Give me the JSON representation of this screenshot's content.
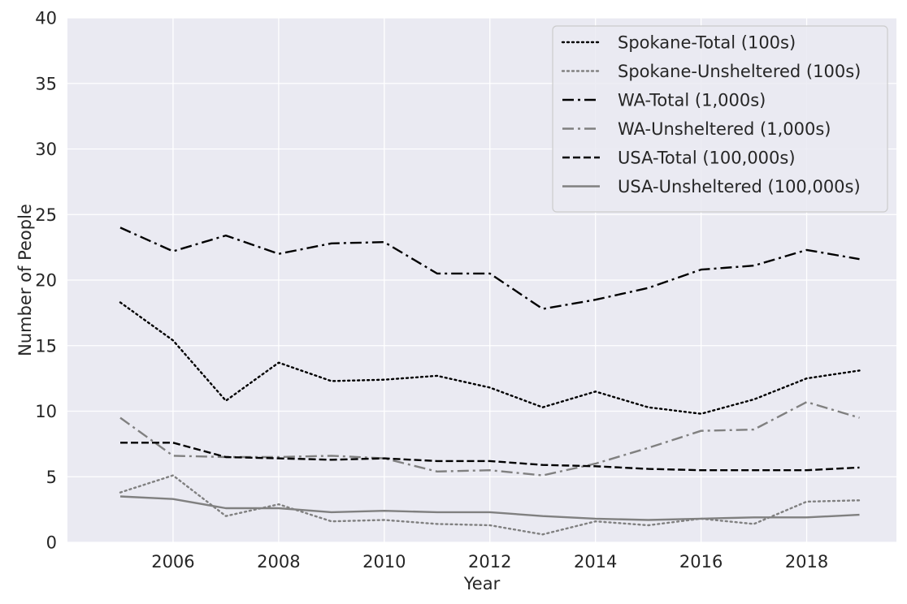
{
  "chart_data": {
    "type": "line",
    "title": "",
    "xlabel": "Year",
    "ylabel": "Number of People",
    "xlim": [
      2004,
      2019.7
    ],
    "ylim": [
      0,
      40
    ],
    "x_ticks": [
      "2006",
      "2008",
      "2010",
      "2012",
      "2014",
      "2016",
      "2018"
    ],
    "y_ticks": [
      "0",
      "5",
      "10",
      "15",
      "20",
      "25",
      "30",
      "35",
      "40"
    ],
    "grid": true,
    "background": "#eaeaf2",
    "legend_position": "top-right",
    "x": [
      2005,
      2006,
      2007,
      2008,
      2009,
      2010,
      2011,
      2012,
      2013,
      2014,
      2015,
      2016,
      2017,
      2018,
      2019
    ],
    "series": [
      {
        "name": "Spokane-Total (100s)",
        "color": "#000000",
        "dash": "dotted",
        "values": [
          18.3,
          15.4,
          10.8,
          13.7,
          12.3,
          12.4,
          12.7,
          11.8,
          10.3,
          11.5,
          10.3,
          9.8,
          10.9,
          12.5,
          13.1
        ]
      },
      {
        "name": "Spokane-Unsheltered (100s)",
        "color": "#808080",
        "dash": "dotted",
        "values": [
          3.8,
          5.1,
          2.0,
          2.9,
          1.6,
          1.7,
          1.4,
          1.3,
          0.6,
          1.6,
          1.3,
          1.8,
          1.4,
          3.1,
          3.2
        ]
      },
      {
        "name": "WA-Total (1,000s)",
        "color": "#000000",
        "dash": "dashdot",
        "values": [
          24.0,
          22.2,
          23.4,
          22.0,
          22.8,
          22.9,
          20.5,
          20.5,
          17.8,
          18.5,
          19.4,
          20.8,
          21.1,
          22.3,
          21.6
        ]
      },
      {
        "name": "WA-Unsheltered (1,000s)",
        "color": "#808080",
        "dash": "dashdot",
        "values": [
          9.5,
          6.6,
          6.5,
          6.5,
          6.6,
          6.4,
          5.4,
          5.5,
          5.1,
          6.0,
          7.2,
          8.5,
          8.6,
          10.7,
          9.5
        ]
      },
      {
        "name": "USA-Total (100,000s)",
        "color": "#000000",
        "dash": "dashed",
        "values": [
          7.6,
          7.6,
          6.5,
          6.4,
          6.3,
          6.4,
          6.2,
          6.2,
          5.9,
          5.8,
          5.6,
          5.5,
          5.5,
          5.5,
          5.7
        ]
      },
      {
        "name": "USA-Unsheltered (100,000s)",
        "color": "#808080",
        "dash": "solid",
        "values": [
          3.5,
          3.3,
          2.6,
          2.6,
          2.3,
          2.4,
          2.3,
          2.3,
          2.0,
          1.8,
          1.7,
          1.8,
          1.9,
          1.9,
          2.1
        ]
      }
    ]
  }
}
